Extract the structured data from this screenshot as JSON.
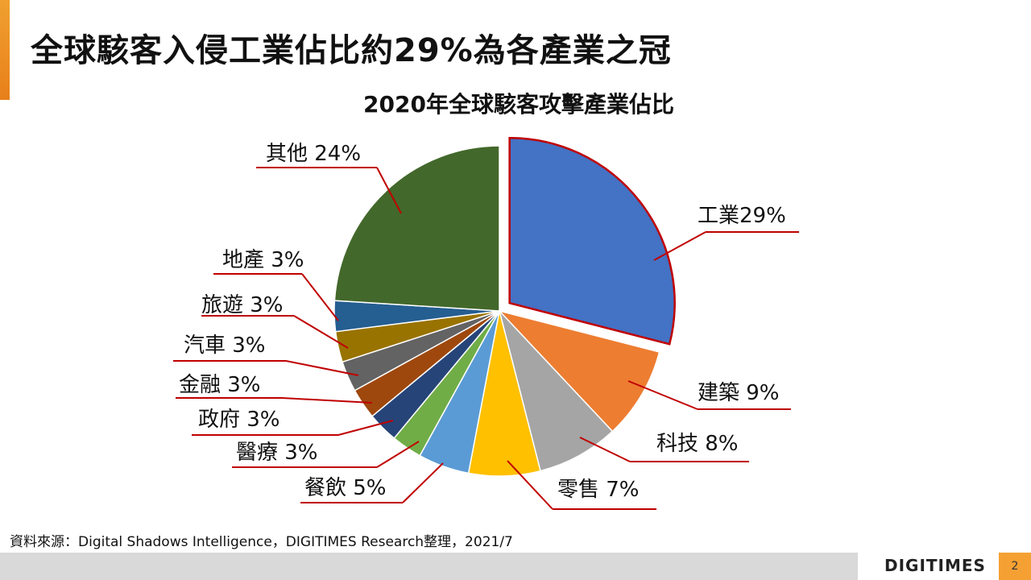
{
  "title": "全球駭客入侵工業佔比約29%為各產業之冠",
  "chart_data": {
    "type": "pie",
    "title": "2020年全球駭客攻擊產業佔比",
    "start": "12 o'clock, clockwise",
    "exploded": "工業",
    "slices": [
      {
        "name": "工業",
        "value": 29,
        "label": "工業29%",
        "color": "#4472C4"
      },
      {
        "name": "建築",
        "value": 9,
        "label": "建築 9%",
        "color": "#ED7D31"
      },
      {
        "name": "科技",
        "value": 8,
        "label": "科技 8%",
        "color": "#A5A5A5"
      },
      {
        "name": "零售",
        "value": 7,
        "label": "零售 7%",
        "color": "#FFC000"
      },
      {
        "name": "餐飲",
        "value": 5,
        "label": "餐飲 5%",
        "color": "#5B9BD5"
      },
      {
        "name": "醫療",
        "value": 3,
        "label": "醫療 3%",
        "color": "#70AD47"
      },
      {
        "name": "政府",
        "value": 3,
        "label": "政府 3%",
        "color": "#264478"
      },
      {
        "name": "金融",
        "value": 3,
        "label": "金融 3%",
        "color": "#9E480E"
      },
      {
        "name": "汽車",
        "value": 3,
        "label": "汽車 3%",
        "color": "#636363"
      },
      {
        "name": "旅遊",
        "value": 3,
        "label": "旅遊 3%",
        "color": "#997300"
      },
      {
        "name": "地產",
        "value": 3,
        "label": "地產 3%",
        "color": "#255E91"
      },
      {
        "name": "其他",
        "value": 24,
        "label": "其他 24%",
        "color": "#43682B"
      }
    ],
    "highlight_color": "#C00000",
    "leader_color": "#C00000"
  },
  "footer": {
    "source": "資料來源：Digital Shadows Intelligence，DIGITIMES Research整理，2021/7",
    "logo": "DIGITIMES",
    "page": "2"
  }
}
